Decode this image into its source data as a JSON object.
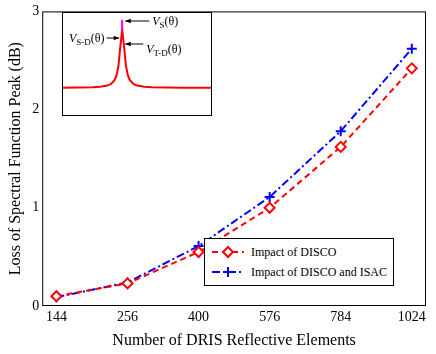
{
  "chart_data": [
    {
      "type": "line",
      "x_label": "Number of DRIS Reflective Elements",
      "y_label": "Loss of Spectral Function Peak (dB)",
      "categories": [
        144,
        256,
        400,
        576,
        784,
        1024
      ],
      "series": [
        {
          "name": "Impact of DISCO",
          "color": "#ff0000",
          "marker": "diamond",
          "line_style": "dashed",
          "values": [
            0.1,
            0.23,
            0.55,
            1.0,
            1.62,
            2.42
          ]
        },
        {
          "name": "Impact of DISCO and ISAC",
          "color": "#0000ff",
          "marker": "plus",
          "line_style": "dashdot",
          "values": [
            0.09,
            0.24,
            0.61,
            1.11,
            1.78,
            2.62
          ]
        }
      ],
      "ylim": [
        0,
        3
      ],
      "yticks": [
        0,
        1,
        2,
        3
      ],
      "grid": false,
      "legend": "lower right"
    },
    {
      "type": "line",
      "x": [
        -8,
        -6,
        -4,
        -3,
        -2,
        -1.5,
        -1,
        -0.75,
        -0.5,
        -0.25,
        0,
        0.25,
        0.5,
        0.75,
        1,
        1.5,
        2,
        3,
        4,
        6,
        8,
        10,
        12
      ],
      "series": [
        {
          "color": "#ff0000",
          "values": [
            0.002,
            0.004,
            0.008,
            0.015,
            0.033,
            0.057,
            0.12,
            0.19,
            0.33,
            0.61,
            0.85,
            0.61,
            0.33,
            0.19,
            0.12,
            0.057,
            0.033,
            0.015,
            0.008,
            0.004,
            0.002,
            0.001,
            0.001
          ]
        },
        {
          "color": "#ff00ff",
          "x": [
            0,
            0
          ],
          "values": [
            0.85,
            1.0
          ]
        }
      ],
      "xlim": [
        -8,
        12
      ],
      "ylim": [
        -0.4,
        1.1
      ],
      "tick_labels": false,
      "grid": false,
      "annotations": [
        {
          "text": "VS-D(θ)"
        },
        {
          "text": "VS(θ)"
        },
        {
          "text": "VT-D(θ)"
        }
      ]
    }
  ]
}
